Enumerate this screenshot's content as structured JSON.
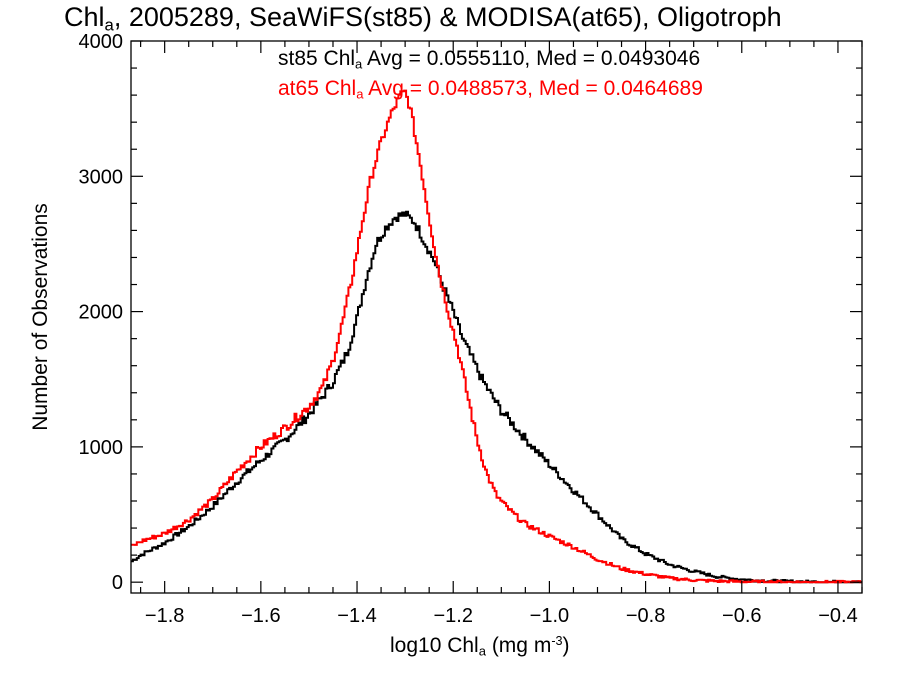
{
  "chart_data": {
    "type": "line",
    "title": {
      "pre": "Chl",
      "sub": "a",
      "post": ", 2005289, SeaWiFS(st85) & MODISA(at65), Oligotroph"
    },
    "xlabel": {
      "pre": "log10 Chl",
      "sub": "a",
      "mid": " (mg m",
      "sup": "-3",
      "post": ")"
    },
    "ylabel": "Number of Observations",
    "xlim": [
      -1.87,
      -0.35
    ],
    "ylim": [
      -80,
      4000
    ],
    "xticks": [
      -1.8,
      -1.6,
      -1.4,
      -1.2,
      -1.0,
      -0.8,
      -0.6,
      -0.4
    ],
    "xtick_labels": [
      "−1.8",
      "−1.6",
      "−1.4",
      "−1.2",
      "−1.0",
      "−0.8",
      "−0.6",
      "−0.4"
    ],
    "yticks": [
      0,
      1000,
      2000,
      3000,
      4000
    ],
    "ytick_labels": [
      "0",
      "1000",
      "2000",
      "3000",
      "4000"
    ],
    "grid": false,
    "legend": "top",
    "stats": [
      {
        "pre": "st85 Chl",
        "sub": "a",
        "post": " Avg = 0.0555110, Med = 0.0493046",
        "color": "#000000"
      },
      {
        "pre": "at65 Chl",
        "sub": "a",
        "post": " Avg = 0.0488573, Med = 0.0464689",
        "color": "#ff0000"
      }
    ],
    "series": [
      {
        "name": "st85",
        "color": "#000000",
        "x": [
          -1.87,
          -1.85,
          -1.8,
          -1.75,
          -1.7,
          -1.65,
          -1.6,
          -1.55,
          -1.5,
          -1.47,
          -1.45,
          -1.42,
          -1.4,
          -1.38,
          -1.36,
          -1.34,
          -1.32,
          -1.3,
          -1.28,
          -1.26,
          -1.24,
          -1.22,
          -1.2,
          -1.18,
          -1.16,
          -1.14,
          -1.12,
          -1.1,
          -1.05,
          -1.0,
          -0.95,
          -0.9,
          -0.85,
          -0.8,
          -0.75,
          -0.7,
          -0.65,
          -0.6,
          -0.55,
          -0.5,
          -0.45,
          -0.4,
          -0.35
        ],
        "y": [
          150,
          200,
          290,
          410,
          560,
          740,
          900,
          1050,
          1240,
          1380,
          1480,
          1700,
          1950,
          2250,
          2500,
          2620,
          2700,
          2720,
          2660,
          2520,
          2380,
          2180,
          2000,
          1800,
          1650,
          1500,
          1380,
          1270,
          1060,
          870,
          680,
          500,
          320,
          210,
          130,
          80,
          40,
          20,
          10,
          5,
          2,
          1,
          0
        ]
      },
      {
        "name": "at65",
        "color": "#ff0000",
        "x": [
          -1.87,
          -1.85,
          -1.8,
          -1.75,
          -1.7,
          -1.65,
          -1.6,
          -1.55,
          -1.5,
          -1.47,
          -1.45,
          -1.43,
          -1.41,
          -1.39,
          -1.37,
          -1.35,
          -1.33,
          -1.31,
          -1.3,
          -1.29,
          -1.27,
          -1.25,
          -1.23,
          -1.21,
          -1.19,
          -1.17,
          -1.15,
          -1.13,
          -1.11,
          -1.09,
          -1.07,
          -1.05,
          -1.0,
          -0.95,
          -0.9,
          -0.85,
          -0.8,
          -0.75,
          -0.7,
          -0.65,
          -0.6,
          -0.55,
          -0.5,
          -0.45,
          -0.4,
          -0.35
        ],
        "y": [
          260,
          300,
          360,
          460,
          610,
          820,
          1000,
          1140,
          1300,
          1450,
          1640,
          1920,
          2250,
          2640,
          3000,
          3250,
          3450,
          3600,
          3620,
          3520,
          3130,
          2700,
          2300,
          2000,
          1720,
          1380,
          1050,
          800,
          640,
          560,
          490,
          430,
          340,
          260,
          170,
          100,
          60,
          30,
          15,
          8,
          4,
          2,
          1,
          0,
          0,
          0
        ]
      }
    ]
  }
}
